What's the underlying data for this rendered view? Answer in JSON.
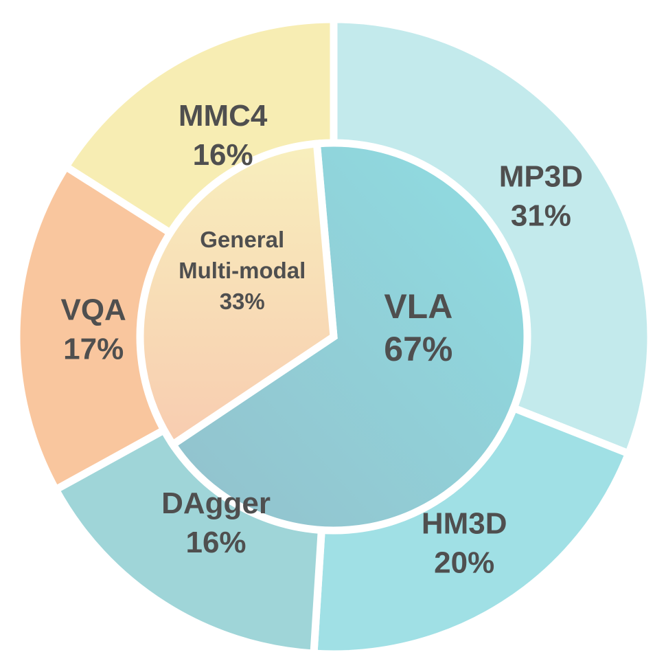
{
  "chart_data": {
    "type": "pie",
    "variant": "sunburst",
    "title": "",
    "inner": [
      {
        "label": "VLA",
        "percent": "67%",
        "value": 67,
        "color": "#8dcfd6"
      },
      {
        "label_lines": [
          "General",
          "Multi-modal"
        ],
        "percent": "33%",
        "value": 33,
        "color": "#f8d3b6"
      }
    ],
    "outer": [
      {
        "label": "MP3D",
        "percent": "31%",
        "value": 31,
        "parent": "VLA",
        "color": "#c3eaec"
      },
      {
        "label": "HM3D",
        "percent": "20%",
        "value": 20,
        "parent": "VLA",
        "color": "#a0e0e5"
      },
      {
        "label": "DAgger",
        "percent": "16%",
        "value": 16,
        "parent": "VLA",
        "color": "#9fd5d8"
      },
      {
        "label": "VQA",
        "percent": "17%",
        "value": 17,
        "parent": "General Multi-modal",
        "color": "#f9c69e"
      },
      {
        "label": "MMC4",
        "percent": "16%",
        "value": 16,
        "parent": "General Multi-modal",
        "color": "#f7edb3"
      }
    ],
    "legend": "none"
  }
}
